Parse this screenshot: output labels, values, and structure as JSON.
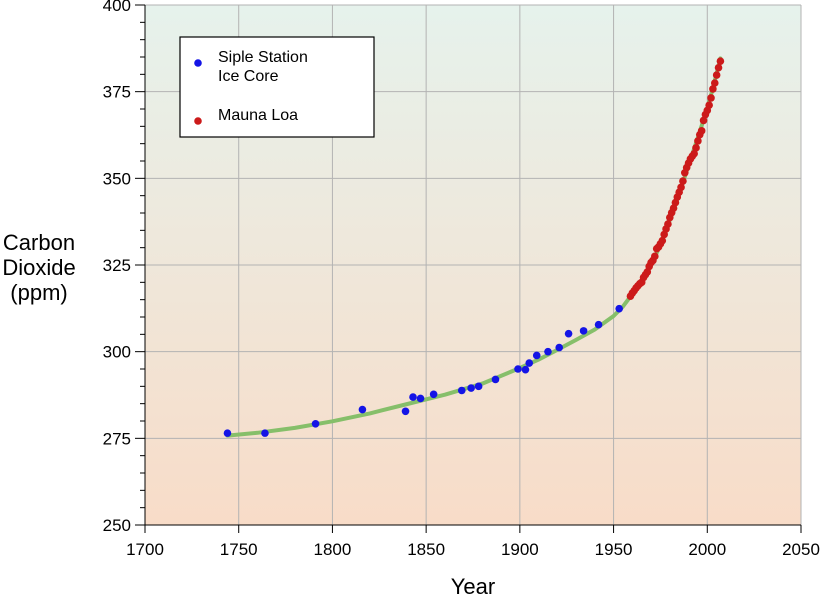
{
  "chart_data": {
    "type": "scatter",
    "title": "",
    "xlabel": "Year",
    "ylabel_lines": [
      "Carbon",
      "Dioxide",
      "(ppm)"
    ],
    "xlim": [
      1700,
      2050
    ],
    "ylim": [
      250,
      400
    ],
    "x_ticks": [
      1700,
      1750,
      1800,
      1850,
      1900,
      1950,
      2000,
      2050
    ],
    "y_ticks": [
      250,
      275,
      300,
      325,
      350,
      375,
      400
    ],
    "grid": true,
    "legend_position": "top-left",
    "background_gradient": [
      "#e6f2ec",
      "#f8dcc8"
    ],
    "series": [
      {
        "name": "Siple Station\nIce Core",
        "marker": "circle",
        "color": "#1414e6",
        "points": [
          [
            1744,
            276.5
          ],
          [
            1764,
            276.5
          ],
          [
            1791,
            279.2
          ],
          [
            1816,
            283.3
          ],
          [
            1839,
            282.8
          ],
          [
            1843,
            286.9
          ],
          [
            1847,
            286.5
          ],
          [
            1854,
            287.7
          ],
          [
            1869,
            288.8
          ],
          [
            1874,
            289.5
          ],
          [
            1878,
            290.0
          ],
          [
            1887,
            292.0
          ],
          [
            1899,
            295.0
          ],
          [
            1903,
            294.8
          ],
          [
            1905,
            296.7
          ],
          [
            1909,
            298.9
          ],
          [
            1915,
            300.0
          ],
          [
            1921,
            301.2
          ],
          [
            1926,
            305.2
          ],
          [
            1934,
            306.0
          ],
          [
            1942,
            307.8
          ],
          [
            1953,
            312.4
          ]
        ]
      },
      {
        "name": "Mauna Loa",
        "marker": "circle",
        "color": "#cc1a1a",
        "points": [
          [
            1959,
            316.0
          ],
          [
            1960,
            316.9
          ],
          [
            1961,
            317.6
          ],
          [
            1962,
            318.4
          ],
          [
            1963,
            319.0
          ],
          [
            1964,
            319.6
          ],
          [
            1965,
            320.0
          ],
          [
            1966,
            321.4
          ],
          [
            1967,
            322.2
          ],
          [
            1968,
            323.0
          ],
          [
            1969,
            324.6
          ],
          [
            1970,
            325.7
          ],
          [
            1971,
            326.3
          ],
          [
            1972,
            327.5
          ],
          [
            1973,
            329.7
          ],
          [
            1974,
            330.2
          ],
          [
            1975,
            331.1
          ],
          [
            1976,
            332.0
          ],
          [
            1977,
            333.8
          ],
          [
            1978,
            335.4
          ],
          [
            1979,
            336.8
          ],
          [
            1980,
            338.7
          ],
          [
            1981,
            340.1
          ],
          [
            1982,
            341.4
          ],
          [
            1983,
            343.0
          ],
          [
            1984,
            344.6
          ],
          [
            1985,
            346.0
          ],
          [
            1986,
            347.4
          ],
          [
            1987,
            349.2
          ],
          [
            1988,
            351.6
          ],
          [
            1989,
            353.1
          ],
          [
            1990,
            354.4
          ],
          [
            1991,
            355.6
          ],
          [
            1992,
            356.4
          ],
          [
            1993,
            357.1
          ],
          [
            1994,
            358.8
          ],
          [
            1995,
            360.8
          ],
          [
            1996,
            362.6
          ],
          [
            1997,
            363.7
          ],
          [
            1998,
            366.7
          ],
          [
            1999,
            368.4
          ],
          [
            2000,
            369.6
          ],
          [
            2001,
            371.1
          ],
          [
            2002,
            373.2
          ],
          [
            2003,
            375.8
          ],
          [
            2004,
            377.5
          ],
          [
            2005,
            379.8
          ],
          [
            2006,
            381.9
          ],
          [
            2007,
            383.8
          ]
        ]
      }
    ],
    "trend_line": {
      "color": "#86bf6a",
      "points": [
        [
          1744,
          275.8
        ],
        [
          1760,
          276.6
        ],
        [
          1780,
          278.0
        ],
        [
          1800,
          279.9
        ],
        [
          1820,
          282.2
        ],
        [
          1840,
          284.9
        ],
        [
          1860,
          287.6
        ],
        [
          1880,
          290.8
        ],
        [
          1900,
          295.3
        ],
        [
          1910,
          297.7
        ],
        [
          1920,
          300.5
        ],
        [
          1930,
          303.4
        ],
        [
          1940,
          306.4
        ],
        [
          1950,
          310.3
        ],
        [
          1955,
          313.0
        ],
        [
          1960,
          316.6
        ],
        [
          1965,
          320.0
        ],
        [
          1970,
          325.0
        ],
        [
          1975,
          330.8
        ],
        [
          1980,
          338.0
        ],
        [
          1985,
          345.6
        ],
        [
          1990,
          353.7
        ],
        [
          1995,
          361.8
        ],
        [
          2000,
          370.2
        ],
        [
          2003,
          376.0
        ],
        [
          2007,
          384.6
        ]
      ]
    }
  }
}
